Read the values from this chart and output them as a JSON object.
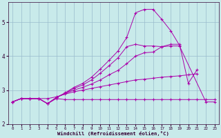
{
  "xlabel": "Windchill (Refroidissement éolien,°C)",
  "bg_color": "#c8eaea",
  "line_color": "#aa00aa",
  "grid_color": "#99bbcc",
  "xlim": [
    -0.5,
    23.5
  ],
  "ylim": [
    2.0,
    5.6
  ],
  "yticks": [
    2,
    3,
    4,
    5
  ],
  "xticks": [
    0,
    1,
    2,
    3,
    4,
    5,
    6,
    7,
    8,
    9,
    10,
    11,
    12,
    13,
    14,
    15,
    16,
    17,
    18,
    19,
    20,
    21,
    22,
    23
  ],
  "series": [
    {
      "x": [
        0,
        1,
        2,
        3,
        4,
        5,
        6,
        7,
        8,
        9,
        10,
        11,
        12,
        13,
        14,
        15,
        16,
        17,
        18,
        19,
        20,
        21,
        22,
        23
      ],
      "y": [
        2.65,
        2.75,
        2.75,
        2.75,
        2.6,
        2.75,
        2.72,
        2.72,
        2.72,
        2.72,
        2.72,
        2.72,
        2.72,
        2.72,
        2.72,
        2.72,
        2.72,
        2.72,
        2.72,
        2.72,
        2.72,
        2.72,
        2.72,
        2.72
      ]
    },
    {
      "x": [
        0,
        1,
        2,
        3,
        4,
        5,
        6,
        7,
        8,
        9,
        10,
        11,
        12,
        13,
        14,
        15,
        16,
        17,
        18,
        19,
        20,
        21,
        22,
        23
      ],
      "y": [
        2.65,
        2.75,
        2.75,
        2.75,
        2.75,
        2.8,
        2.88,
        2.95,
        3.0,
        3.05,
        3.1,
        3.15,
        3.2,
        3.25,
        3.3,
        3.32,
        3.35,
        3.38,
        3.4,
        3.42,
        3.45,
        3.48,
        null,
        null
      ]
    },
    {
      "x": [
        0,
        1,
        2,
        3,
        4,
        5,
        6,
        7,
        8,
        9,
        10,
        11,
        12,
        13,
        14,
        15,
        16,
        17,
        18,
        19,
        20,
        21
      ],
      "y": [
        2.65,
        2.75,
        2.75,
        2.75,
        2.6,
        2.78,
        2.9,
        3.0,
        3.08,
        3.18,
        3.3,
        3.45,
        3.58,
        3.78,
        4.0,
        4.1,
        4.12,
        4.28,
        4.35,
        4.35,
        3.2,
        3.6
      ]
    },
    {
      "x": [
        0,
        1,
        2,
        3,
        4,
        5,
        6,
        7,
        8,
        9,
        10,
        11,
        12,
        13,
        14,
        15,
        16,
        17,
        18,
        19,
        20,
        21,
        22,
        23
      ],
      "y": [
        2.65,
        2.75,
        2.75,
        2.75,
        2.6,
        2.78,
        2.9,
        3.05,
        3.15,
        3.3,
        3.5,
        3.72,
        3.95,
        4.28,
        4.35,
        4.3,
        4.3,
        4.28,
        4.3,
        4.3,
        null,
        null,
        2.65,
        2.65
      ]
    },
    {
      "x": [
        0,
        1,
        2,
        3,
        4,
        5,
        6,
        7,
        8,
        9,
        10,
        11,
        12,
        13,
        14,
        15,
        16,
        17,
        18,
        19
      ],
      "y": [
        2.65,
        2.75,
        2.75,
        2.75,
        2.6,
        2.78,
        2.92,
        3.08,
        3.2,
        3.38,
        3.62,
        3.88,
        4.15,
        4.55,
        5.28,
        5.38,
        5.38,
        5.08,
        4.75,
        4.32
      ]
    }
  ]
}
